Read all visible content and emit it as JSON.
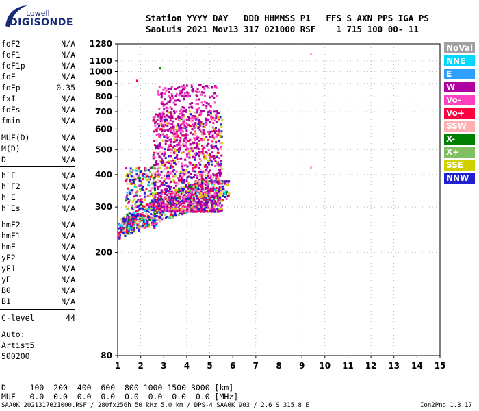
{
  "logo": {
    "top": "Lowell",
    "main": "DIGISONDE"
  },
  "header": {
    "labels": "Station YYYY DAY   DDD HHMMSS P1   FFS S AXN PPS IGA PS",
    "values": "SaoLuis 2021 Nov13 317 021000 RSF    1 715 100 00- 11"
  },
  "params": [
    {
      "name": "foF2",
      "value": "N/A"
    },
    {
      "name": "foF1",
      "value": "N/A"
    },
    {
      "name": "foF1p",
      "value": "N/A"
    },
    {
      "name": "foE",
      "value": "N/A"
    },
    {
      "name": "foEp",
      "value": "0.35"
    },
    {
      "name": "fxI",
      "value": "N/A"
    },
    {
      "name": "foEs",
      "value": "N/A"
    },
    {
      "name": "fmin",
      "value": "N/A"
    },
    {
      "name": "MUF(D)",
      "value": "N/A"
    },
    {
      "name": "M(D)",
      "value": "N/A"
    },
    {
      "name": "D",
      "value": "N/A"
    },
    {
      "name": "h`F",
      "value": "N/A"
    },
    {
      "name": "h`F2",
      "value": "N/A"
    },
    {
      "name": "h`E",
      "value": "N/A"
    },
    {
      "name": "h`Es",
      "value": "N/A"
    },
    {
      "name": "hmF2",
      "value": "N/A"
    },
    {
      "name": "hmF1",
      "value": "N/A"
    },
    {
      "name": "hmE",
      "value": "N/A"
    },
    {
      "name": "yF2",
      "value": "N/A"
    },
    {
      "name": "yF1",
      "value": "N/A"
    },
    {
      "name": "yE",
      "value": "N/A"
    },
    {
      "name": "B0",
      "value": "N/A"
    },
    {
      "name": "B1",
      "value": "N/A"
    }
  ],
  "clevel": {
    "name": "C-level",
    "value": "44"
  },
  "auto": {
    "line1": "Auto:",
    "line2": "Artist5",
    "line3": "500200"
  },
  "legend": [
    {
      "label": "NoVal",
      "color": "#a0a0a0"
    },
    {
      "label": "NNE",
      "color": "#00d8ff"
    },
    {
      "label": "E",
      "color": "#30a0ff"
    },
    {
      "label": "W",
      "color": "#b000a0"
    },
    {
      "label": "Vo-",
      "color": "#ff40c0"
    },
    {
      "label": "Vo+",
      "color": "#ff0040"
    },
    {
      "label": "SSW",
      "color": "#ffb0b0"
    },
    {
      "label": "X-",
      "color": "#008000"
    },
    {
      "label": "X+",
      "color": "#80c060"
    },
    {
      "label": "SSE",
      "color": "#d0d000"
    },
    {
      "label": "NNW",
      "color": "#2020d0"
    }
  ],
  "bottom": {
    "d_row": "D     100  200  400  600  800 1000 1500 3000 [km]",
    "muf_row": "MUF   0.0  0.0  0.0  0.0  0.0  0.0  0.0  0.0 [MHz]"
  },
  "footer": {
    "left": "SAA0K_2021317021000.RSF / 280fx256h 50 kHz 5.0 km / DPS-4 SAA0K 903 / 2.6 S 315.8 E",
    "right": "Ion2Png 1.3.17"
  },
  "chart_data": {
    "type": "scatter",
    "title": "",
    "xlabel": "",
    "ylabel": "",
    "xlim": [
      1,
      15
    ],
    "ylim": [
      80,
      1280
    ],
    "yscale": "log",
    "x_ticks": [
      1,
      2,
      3,
      4,
      5,
      6,
      7,
      8,
      9,
      10,
      11,
      12,
      13,
      14,
      15
    ],
    "y_ticks": [
      80,
      200,
      300,
      400,
      500,
      600,
      700,
      800,
      900,
      1000,
      1100,
      1280
    ],
    "grid": "dotted",
    "legend_position": "right",
    "clusters": [
      {
        "note": "bottom trace",
        "fmin": 1.0,
        "fmax": 5.8,
        "hmin": 220,
        "hmax": 360
      },
      {
        "note": "main echo",
        "fmin": 1.8,
        "fmax": 5.6,
        "hmin": 280,
        "hmax": 900
      }
    ],
    "isolated_points": [
      {
        "x": 9.35,
        "y": 1180
      },
      {
        "x": 9.35,
        "y": 430
      },
      {
        "x": 1.8,
        "y": 930
      },
      {
        "x": 2.8,
        "y": 1040
      }
    ]
  }
}
